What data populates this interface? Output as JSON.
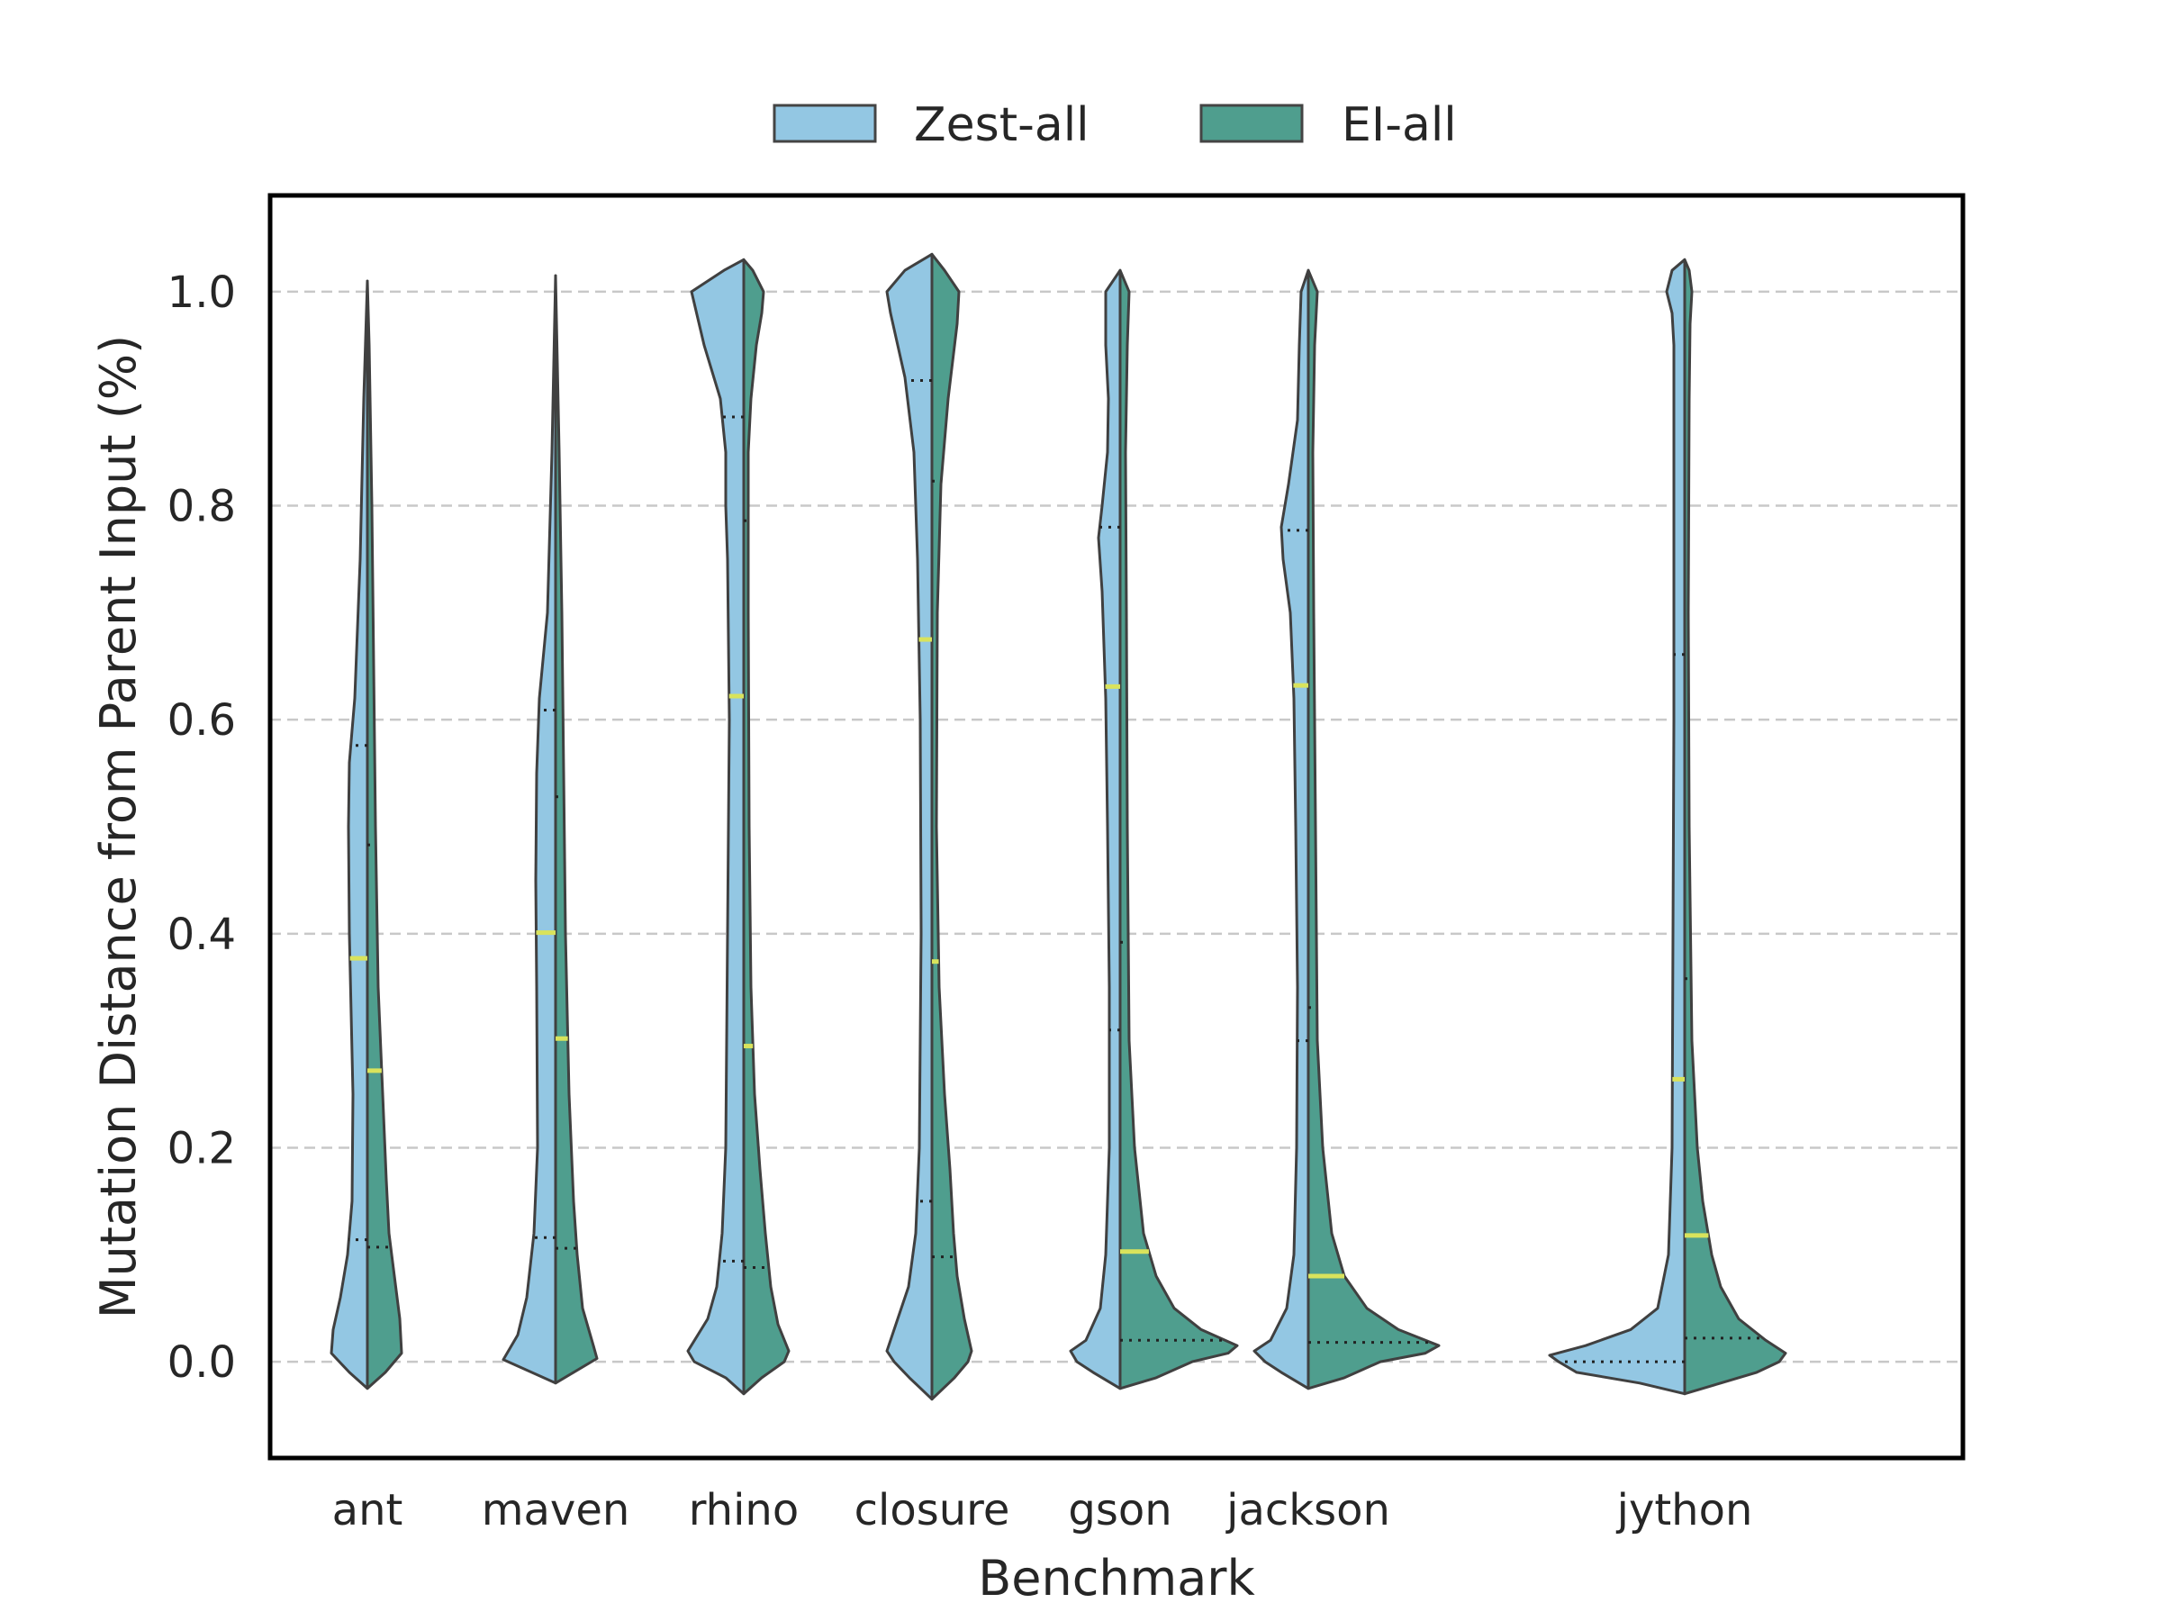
{
  "chart_data": {
    "type": "violin",
    "xlabel": "Benchmark",
    "ylabel": "Mutation Distance from Parent Input (%)",
    "ylim": [
      -0.09,
      1.09
    ],
    "yticks": [
      "0.0",
      "0.2",
      "0.4",
      "0.6",
      "0.8",
      "1.0"
    ],
    "grid": "horizontal dashed",
    "legend_placement": "top-center",
    "split": true,
    "categories": [
      "ant",
      "maven",
      "rhino",
      "closure",
      "gson",
      "jackson",
      "jython"
    ],
    "category_positions": [
      0,
      1,
      2,
      3,
      4,
      5,
      7
    ],
    "series": [
      {
        "name": "Zest-all",
        "color": "#93c7e3",
        "side": "left",
        "median": [
          0.377,
          0.401,
          0.622,
          0.675,
          0.631,
          0.632,
          0.264
        ],
        "q1": [
          0.114,
          0.116,
          0.094,
          0.15,
          0.31,
          0.3,
          0.0
        ],
        "q3": [
          0.576,
          0.609,
          0.883,
          0.917,
          0.78,
          0.777,
          0.661
        ],
        "min": [
          -0.025,
          -0.02,
          -0.03,
          -0.035,
          -0.025,
          -0.025,
          -0.03
        ],
        "max": [
          1.01,
          1.015,
          1.03,
          1.035,
          1.02,
          1.02,
          1.03
        ]
      },
      {
        "name": "EI-all",
        "color": "#4f9e8e",
        "side": "right",
        "median": [
          0.272,
          0.302,
          0.295,
          0.374,
          0.103,
          0.08,
          0.118
        ],
        "q1": [
          0.107,
          0.106,
          0.088,
          0.098,
          0.02,
          0.018,
          0.022
        ],
        "q3": [
          0.483,
          0.528,
          0.786,
          0.823,
          0.392,
          0.331,
          0.358
        ],
        "min": [
          -0.025,
          -0.02,
          -0.03,
          -0.035,
          -0.025,
          -0.025,
          -0.03
        ],
        "max": [
          1.01,
          1.015,
          1.03,
          1.035,
          1.02,
          1.02,
          1.03
        ]
      }
    ]
  }
}
